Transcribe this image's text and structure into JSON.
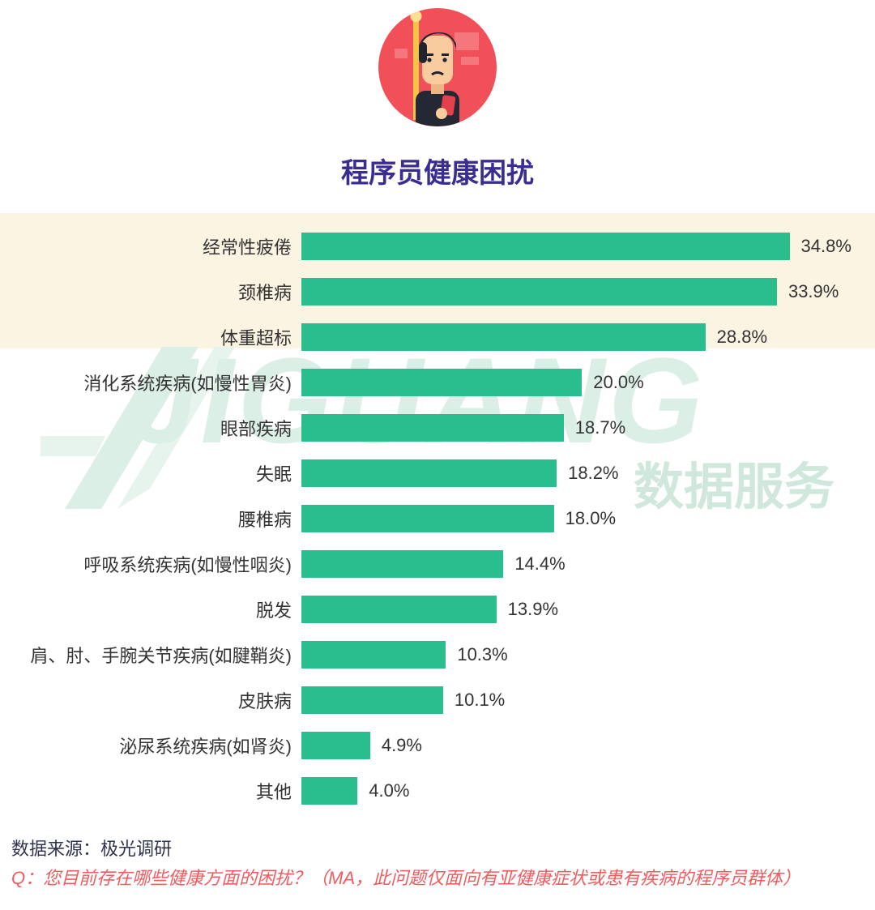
{
  "header": {
    "title": "程序员健康困扰"
  },
  "chart_data": {
    "type": "bar",
    "orientation": "horizontal",
    "title": "程序员健康困扰",
    "categories": [
      "经常性疲倦",
      "颈椎病",
      "体重超标",
      "消化系统疾病(如慢性胃炎)",
      "眼部疾病",
      "失眠",
      "腰椎病",
      "呼吸系统疾病(如慢性咽炎)",
      "脱发",
      "肩、肘、手腕关节疾病(如腱鞘炎)",
      "皮肤病",
      "泌尿系统疾病(如肾炎)",
      "其他"
    ],
    "values": [
      34.8,
      33.9,
      28.8,
      20.0,
      18.7,
      18.2,
      18.0,
      14.4,
      13.9,
      10.3,
      10.1,
      4.9,
      4.0
    ],
    "value_labels": [
      "34.8%",
      "33.9%",
      "28.8%",
      "20.0%",
      "18.7%",
      "18.2%",
      "18.0%",
      "14.4%",
      "13.9%",
      "10.3%",
      "10.1%",
      "4.9%",
      "4.0%"
    ],
    "xlim": [
      0,
      35
    ],
    "bar_color": "#2abd8e",
    "grid": false,
    "legend": false
  },
  "watermark": {
    "text": "JIGUANG",
    "subtext": "数据服务",
    "color": "#dcefe6"
  },
  "footer": {
    "source": "数据来源：极光调研",
    "question": "Q：您目前存在哪些健康方面的困扰？（MA，此问题仅面向有亚健康症状或患有疾病的程序员群体）"
  },
  "colors": {
    "accent_bar": "#2abd8e",
    "title": "#3a2d92",
    "highlight_band": "#fbf4e3",
    "question_text": "#f15b5e",
    "avatar_circle": "#f25059"
  }
}
